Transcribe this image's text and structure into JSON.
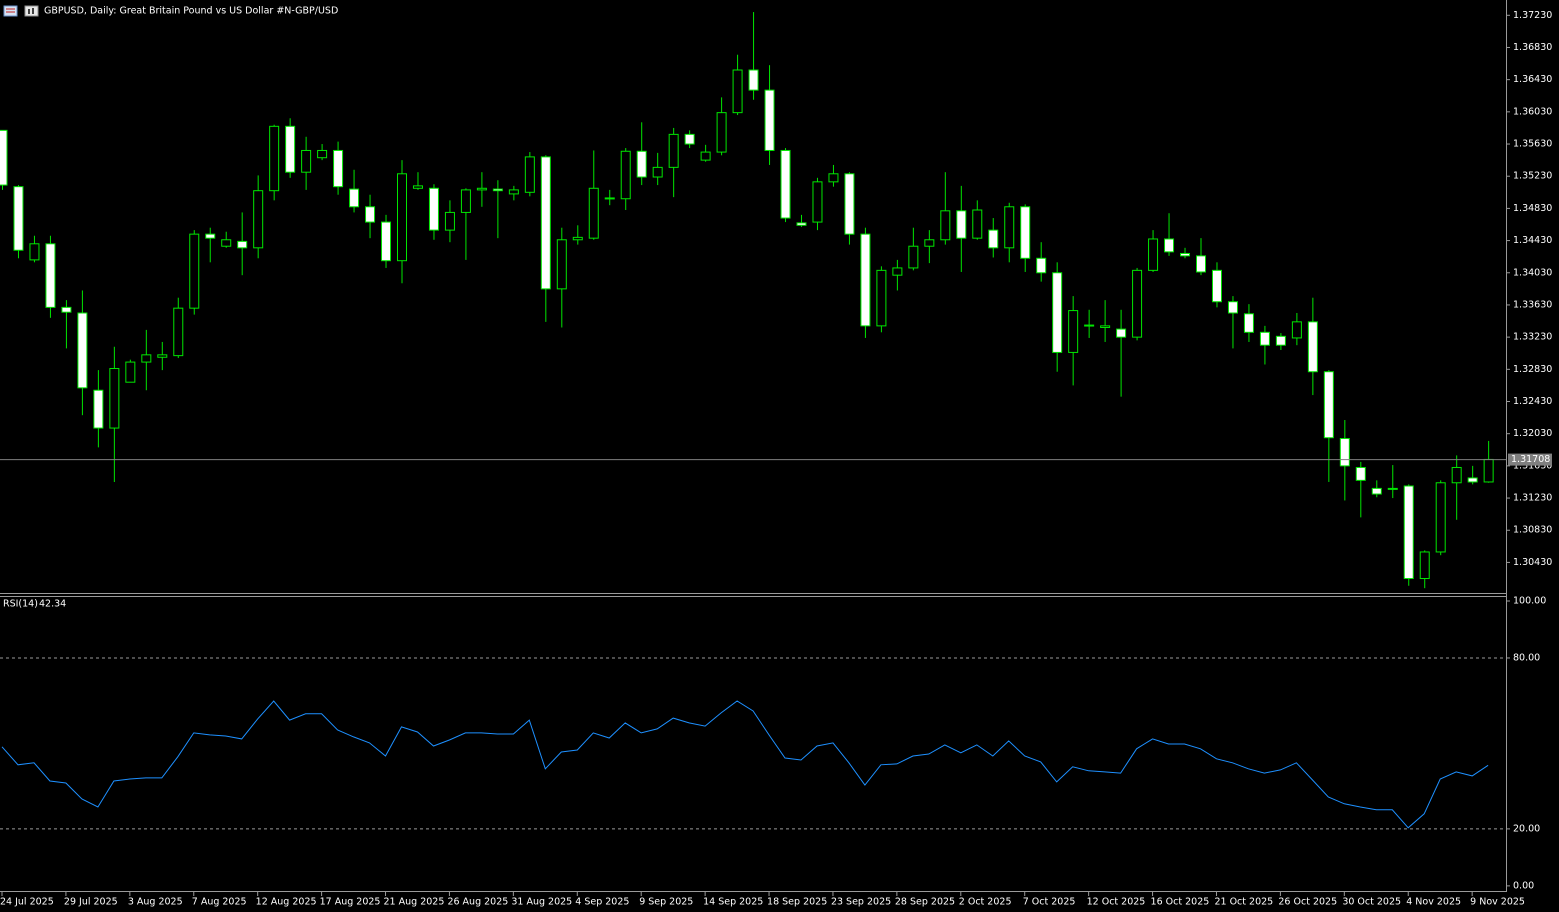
{
  "chart_data": [
    {
      "type": "candlestick",
      "title": "GBPUSD, Daily:  Great Britain Pound vs US Dollar #N-GBP/USD",
      "categories": [
        "24 Jul 2025",
        null,
        null,
        null,
        "29 Jul 2025",
        null,
        null,
        null,
        "3 Aug 2025",
        null,
        null,
        null,
        "7 Aug 2025",
        null,
        null,
        null,
        "12 Aug 2025",
        null,
        null,
        null,
        "17 Aug 2025",
        null,
        null,
        null,
        "21 Aug 2025",
        null,
        null,
        null,
        "26 Aug 2025",
        null,
        null,
        null,
        "31 Aug 2025",
        null,
        null,
        null,
        "4 Sep 2025",
        null,
        null,
        null,
        "9 Sep 2025",
        null,
        null,
        null,
        "14 Sep 2025",
        null,
        null,
        null,
        "18 Sep 2025",
        null,
        null,
        null,
        "23 Sep 2025",
        null,
        null,
        null,
        "28 Sep 2025",
        null,
        null,
        null,
        "2 Oct 2025",
        null,
        null,
        null,
        "7 Oct 2025",
        null,
        null,
        null,
        "12 Oct 2025",
        null,
        null,
        null,
        "16 Oct 2025",
        null,
        null,
        null,
        "21 Oct 2025",
        null,
        null,
        null,
        "26 Oct 2025",
        null,
        null,
        null,
        "30 Oct 2025",
        null,
        null,
        null,
        "4 Nov 2025",
        null,
        null,
        null,
        "9 Nov 2025",
        null
      ],
      "open": [
        1.358,
        1.351,
        1.3419,
        1.3439,
        1.336,
        1.3353,
        1.3257,
        1.321,
        1.3267,
        1.3292,
        1.3298,
        1.33,
        1.3359,
        1.3451,
        1.3436,
        1.3442,
        1.3434,
        1.3505,
        1.3585,
        1.3528,
        1.3546,
        1.3555,
        1.3507,
        1.3485,
        1.3466,
        1.3418,
        1.3508,
        1.3508,
        1.3456,
        1.3478,
        1.3506,
        1.3507,
        1.3501,
        1.3503,
        1.3547,
        1.3383,
        1.3444,
        1.3446,
        1.3495,
        1.3495,
        1.3554,
        1.3522,
        1.3534,
        1.3575,
        1.3543,
        1.3553,
        1.3602,
        1.3655,
        1.363,
        1.3555,
        1.3465,
        1.3466,
        1.3516,
        1.3526,
        1.3451,
        1.3337,
        1.34,
        1.3409,
        1.3436,
        1.3444,
        1.348,
        1.3446,
        1.3456,
        1.3434,
        1.3485,
        1.3421,
        1.3403,
        1.3304,
        1.3337,
        1.3335,
        1.3333,
        1.3323,
        1.3406,
        1.3445,
        1.3427,
        1.3424,
        1.3406,
        1.3367,
        1.3352,
        1.3329,
        1.3324,
        1.3322,
        1.3342,
        1.328,
        1.3197,
        1.3161,
        1.3135,
        1.3134,
        1.3138,
        1.3023,
        1.3056,
        1.3142,
        1.3148,
        1.3143
      ],
      "high": [
        1.358,
        1.3512,
        1.3449,
        1.3449,
        1.3369,
        1.3381,
        1.3282,
        1.3311,
        1.3295,
        1.3332,
        1.3317,
        1.3372,
        1.3456,
        1.3459,
        1.3454,
        1.3478,
        1.3524,
        1.3587,
        1.3595,
        1.3572,
        1.3563,
        1.3566,
        1.3531,
        1.35,
        1.3475,
        1.3543,
        1.3528,
        1.3513,
        1.3493,
        1.3508,
        1.3528,
        1.3518,
        1.3511,
        1.3553,
        1.3549,
        1.3459,
        1.3462,
        1.3555,
        1.3506,
        1.3558,
        1.359,
        1.3552,
        1.3583,
        1.358,
        1.3562,
        1.3621,
        1.3674,
        1.3727,
        1.3661,
        1.3558,
        1.3475,
        1.3521,
        1.3537,
        1.3528,
        1.3459,
        1.3411,
        1.3419,
        1.3459,
        1.3456,
        1.3528,
        1.3511,
        1.3493,
        1.3471,
        1.349,
        1.3488,
        1.3441,
        1.3416,
        1.3374,
        1.3357,
        1.3369,
        1.3357,
        1.3409,
        1.3456,
        1.3477,
        1.3434,
        1.3446,
        1.3416,
        1.3374,
        1.3364,
        1.3337,
        1.3328,
        1.3353,
        1.3372,
        1.3282,
        1.322,
        1.3168,
        1.3145,
        1.3164,
        1.314,
        1.3058,
        1.3145,
        1.3176,
        1.3163,
        1.3194
      ],
      "low": [
        1.3506,
        1.3421,
        1.3416,
        1.3347,
        1.3309,
        1.3226,
        1.3186,
        1.3143,
        1.3267,
        1.3257,
        1.3282,
        1.3297,
        1.3351,
        1.3416,
        1.3434,
        1.34,
        1.3421,
        1.3493,
        1.3521,
        1.3506,
        1.3543,
        1.35,
        1.3478,
        1.3446,
        1.3409,
        1.339,
        1.3506,
        1.3444,
        1.3441,
        1.3419,
        1.3485,
        1.3446,
        1.3493,
        1.3498,
        1.3342,
        1.3335,
        1.3438,
        1.3444,
        1.3487,
        1.3481,
        1.3512,
        1.3512,
        1.3497,
        1.3558,
        1.3541,
        1.3549,
        1.3599,
        1.3618,
        1.3537,
        1.3466,
        1.346,
        1.3456,
        1.351,
        1.3438,
        1.3322,
        1.3329,
        1.3381,
        1.3406,
        1.3415,
        1.3438,
        1.3404,
        1.3444,
        1.3422,
        1.3416,
        1.3404,
        1.3392,
        1.328,
        1.3263,
        1.3322,
        1.3317,
        1.3249,
        1.3319,
        1.3404,
        1.3424,
        1.3421,
        1.34,
        1.336,
        1.3309,
        1.3317,
        1.3289,
        1.3307,
        1.3313,
        1.3251,
        1.3143,
        1.312,
        1.3099,
        1.3124,
        1.3123,
        1.3014,
        1.3011,
        1.3052,
        1.3096,
        1.314,
        1.3142
      ],
      "close": [
        1.3512,
        1.3431,
        1.3439,
        1.336,
        1.3354,
        1.326,
        1.321,
        1.3284,
        1.3292,
        1.3301,
        1.3301,
        1.3359,
        1.3451,
        1.3446,
        1.3444,
        1.3434,
        1.3505,
        1.3585,
        1.3528,
        1.3555,
        1.3555,
        1.351,
        1.3485,
        1.3466,
        1.3418,
        1.3526,
        1.3511,
        1.3456,
        1.3478,
        1.3506,
        1.3508,
        1.3505,
        1.3506,
        1.3547,
        1.3383,
        1.3444,
        1.3447,
        1.3508,
        1.3496,
        1.3554,
        1.3522,
        1.3534,
        1.3575,
        1.3563,
        1.3553,
        1.3602,
        1.3655,
        1.363,
        1.3555,
        1.3471,
        1.3462,
        1.3516,
        1.3526,
        1.3451,
        1.3337,
        1.3406,
        1.3409,
        1.3436,
        1.3444,
        1.348,
        1.3446,
        1.3481,
        1.3434,
        1.3485,
        1.3421,
        1.3403,
        1.3304,
        1.3356,
        1.3338,
        1.3337,
        1.3323,
        1.3406,
        1.3445,
        1.3429,
        1.3424,
        1.3404,
        1.3367,
        1.3353,
        1.3329,
        1.3313,
        1.3313,
        1.3342,
        1.328,
        1.3198,
        1.3163,
        1.3145,
        1.3128,
        1.3135,
        1.3023,
        1.3056,
        1.3142,
        1.3161,
        1.3143,
        1.3171
      ],
      "current_price": 1.31708,
      "ylim": [
        1.3005,
        1.3742
      ],
      "yticks": [
        {
          "value": 1.3723,
          "label": "1.37230"
        },
        {
          "value": 1.3683,
          "label": "1.36830"
        },
        {
          "value": 1.3643,
          "label": "1.36430"
        },
        {
          "value": 1.3603,
          "label": "1.36030"
        },
        {
          "value": 1.3563,
          "label": "1.35630"
        },
        {
          "value": 1.3523,
          "label": "1.35230"
        },
        {
          "value": 1.3483,
          "label": "1.34830"
        },
        {
          "value": 1.3443,
          "label": "1.34430"
        },
        {
          "value": 1.3403,
          "label": "1.34030"
        },
        {
          "value": 1.3363,
          "label": "1.33630"
        },
        {
          "value": 1.3323,
          "label": "1.33230"
        },
        {
          "value": 1.3283,
          "label": "1.32830"
        },
        {
          "value": 1.3243,
          "label": "1.32430"
        },
        {
          "value": 1.3203,
          "label": "1.32030"
        },
        {
          "value": 1.3163,
          "label": "1.31630"
        },
        {
          "value": 1.3123,
          "label": "1.31230"
        },
        {
          "value": 1.3083,
          "label": "1.30830"
        },
        {
          "value": 1.3043,
          "label": "1.30430"
        }
      ],
      "bull_color": "#000000",
      "bear_color": "#ffffff",
      "wick_color": "#00e600",
      "price_line_color": "#7f7f7f"
    },
    {
      "type": "line",
      "name": "RSI(14)",
      "color": "#1e90ff",
      "values": [
        48.8,
        42.5,
        43.2,
        36.8,
        36.1,
        30.5,
        27.7,
        36.8,
        37.5,
        37.9,
        37.9,
        45.3,
        53.7,
        53.0,
        52.6,
        51.6,
        58.6,
        64.9,
        58.2,
        60.4,
        60.4,
        54.7,
        52.3,
        50.2,
        45.6,
        55.8,
        54.0,
        49.1,
        51.2,
        53.7,
        53.7,
        53.3,
        53.3,
        58.2,
        41.1,
        47.0,
        47.7,
        53.7,
        51.9,
        57.2,
        53.7,
        55.1,
        58.9,
        57.2,
        56.1,
        60.7,
        64.9,
        61.4,
        53.0,
        44.9,
        44.2,
        49.1,
        50.2,
        43.2,
        35.4,
        42.5,
        42.8,
        45.6,
        46.3,
        49.5,
        46.7,
        49.5,
        45.6,
        50.9,
        45.6,
        43.5,
        36.5,
        41.8,
        40.4,
        40.0,
        39.6,
        48.1,
        51.6,
        49.8,
        49.8,
        48.1,
        44.6,
        43.2,
        41.1,
        39.6,
        40.7,
        43.2,
        37.2,
        31.2,
        28.8,
        27.7,
        26.7,
        26.7,
        20.4,
        25.3,
        37.5,
        40.0,
        38.6,
        42.34
      ],
      "ylim": [
        -1.8,
        101.4
      ],
      "yticks": [
        {
          "value": 100,
          "label": "100.00"
        },
        {
          "value": 80,
          "label": "80.00"
        },
        {
          "value": 20,
          "label": "20.00"
        },
        {
          "value": 0,
          "label": "0.00"
        }
      ],
      "levels": [
        80,
        20
      ]
    }
  ]
}
